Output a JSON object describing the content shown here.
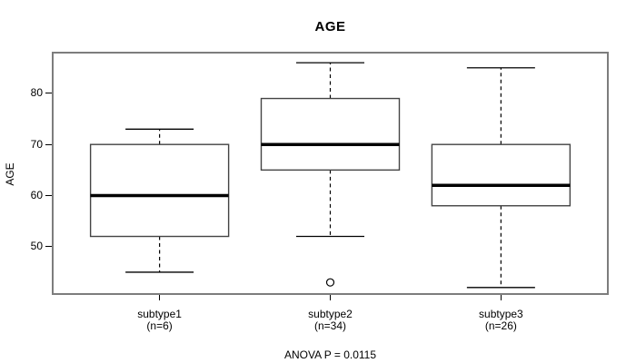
{
  "chart_data": {
    "type": "boxplot",
    "title": "AGE",
    "ylabel": "AGE",
    "xlabel": "",
    "footer": "ANOVA P = 0.0115",
    "ylim": [
      40.9,
      87.8
    ],
    "yticks": [
      50,
      60,
      70,
      80
    ],
    "grid": false,
    "groups": [
      {
        "label": "subtype1",
        "sublabel": "(n=6)",
        "whisker_low": 45,
        "q1": 52,
        "median": 60,
        "q3": 70,
        "whisker_high": 73,
        "outliers": []
      },
      {
        "label": "subtype2",
        "sublabel": "(n=34)",
        "whisker_low": 52,
        "q1": 65,
        "median": 70,
        "q3": 79,
        "whisker_high": 86,
        "outliers": [
          43
        ]
      },
      {
        "label": "subtype3",
        "sublabel": "(n=26)",
        "whisker_low": 42,
        "q1": 58,
        "median": 62,
        "q3": 70,
        "whisker_high": 85,
        "outliers": []
      }
    ],
    "colors": {
      "frame": "#7d7d7d",
      "box_border": "#444444",
      "box_fill": "#ffffff",
      "median": "#000000",
      "whisker": "#000000",
      "text": "#000000"
    }
  }
}
